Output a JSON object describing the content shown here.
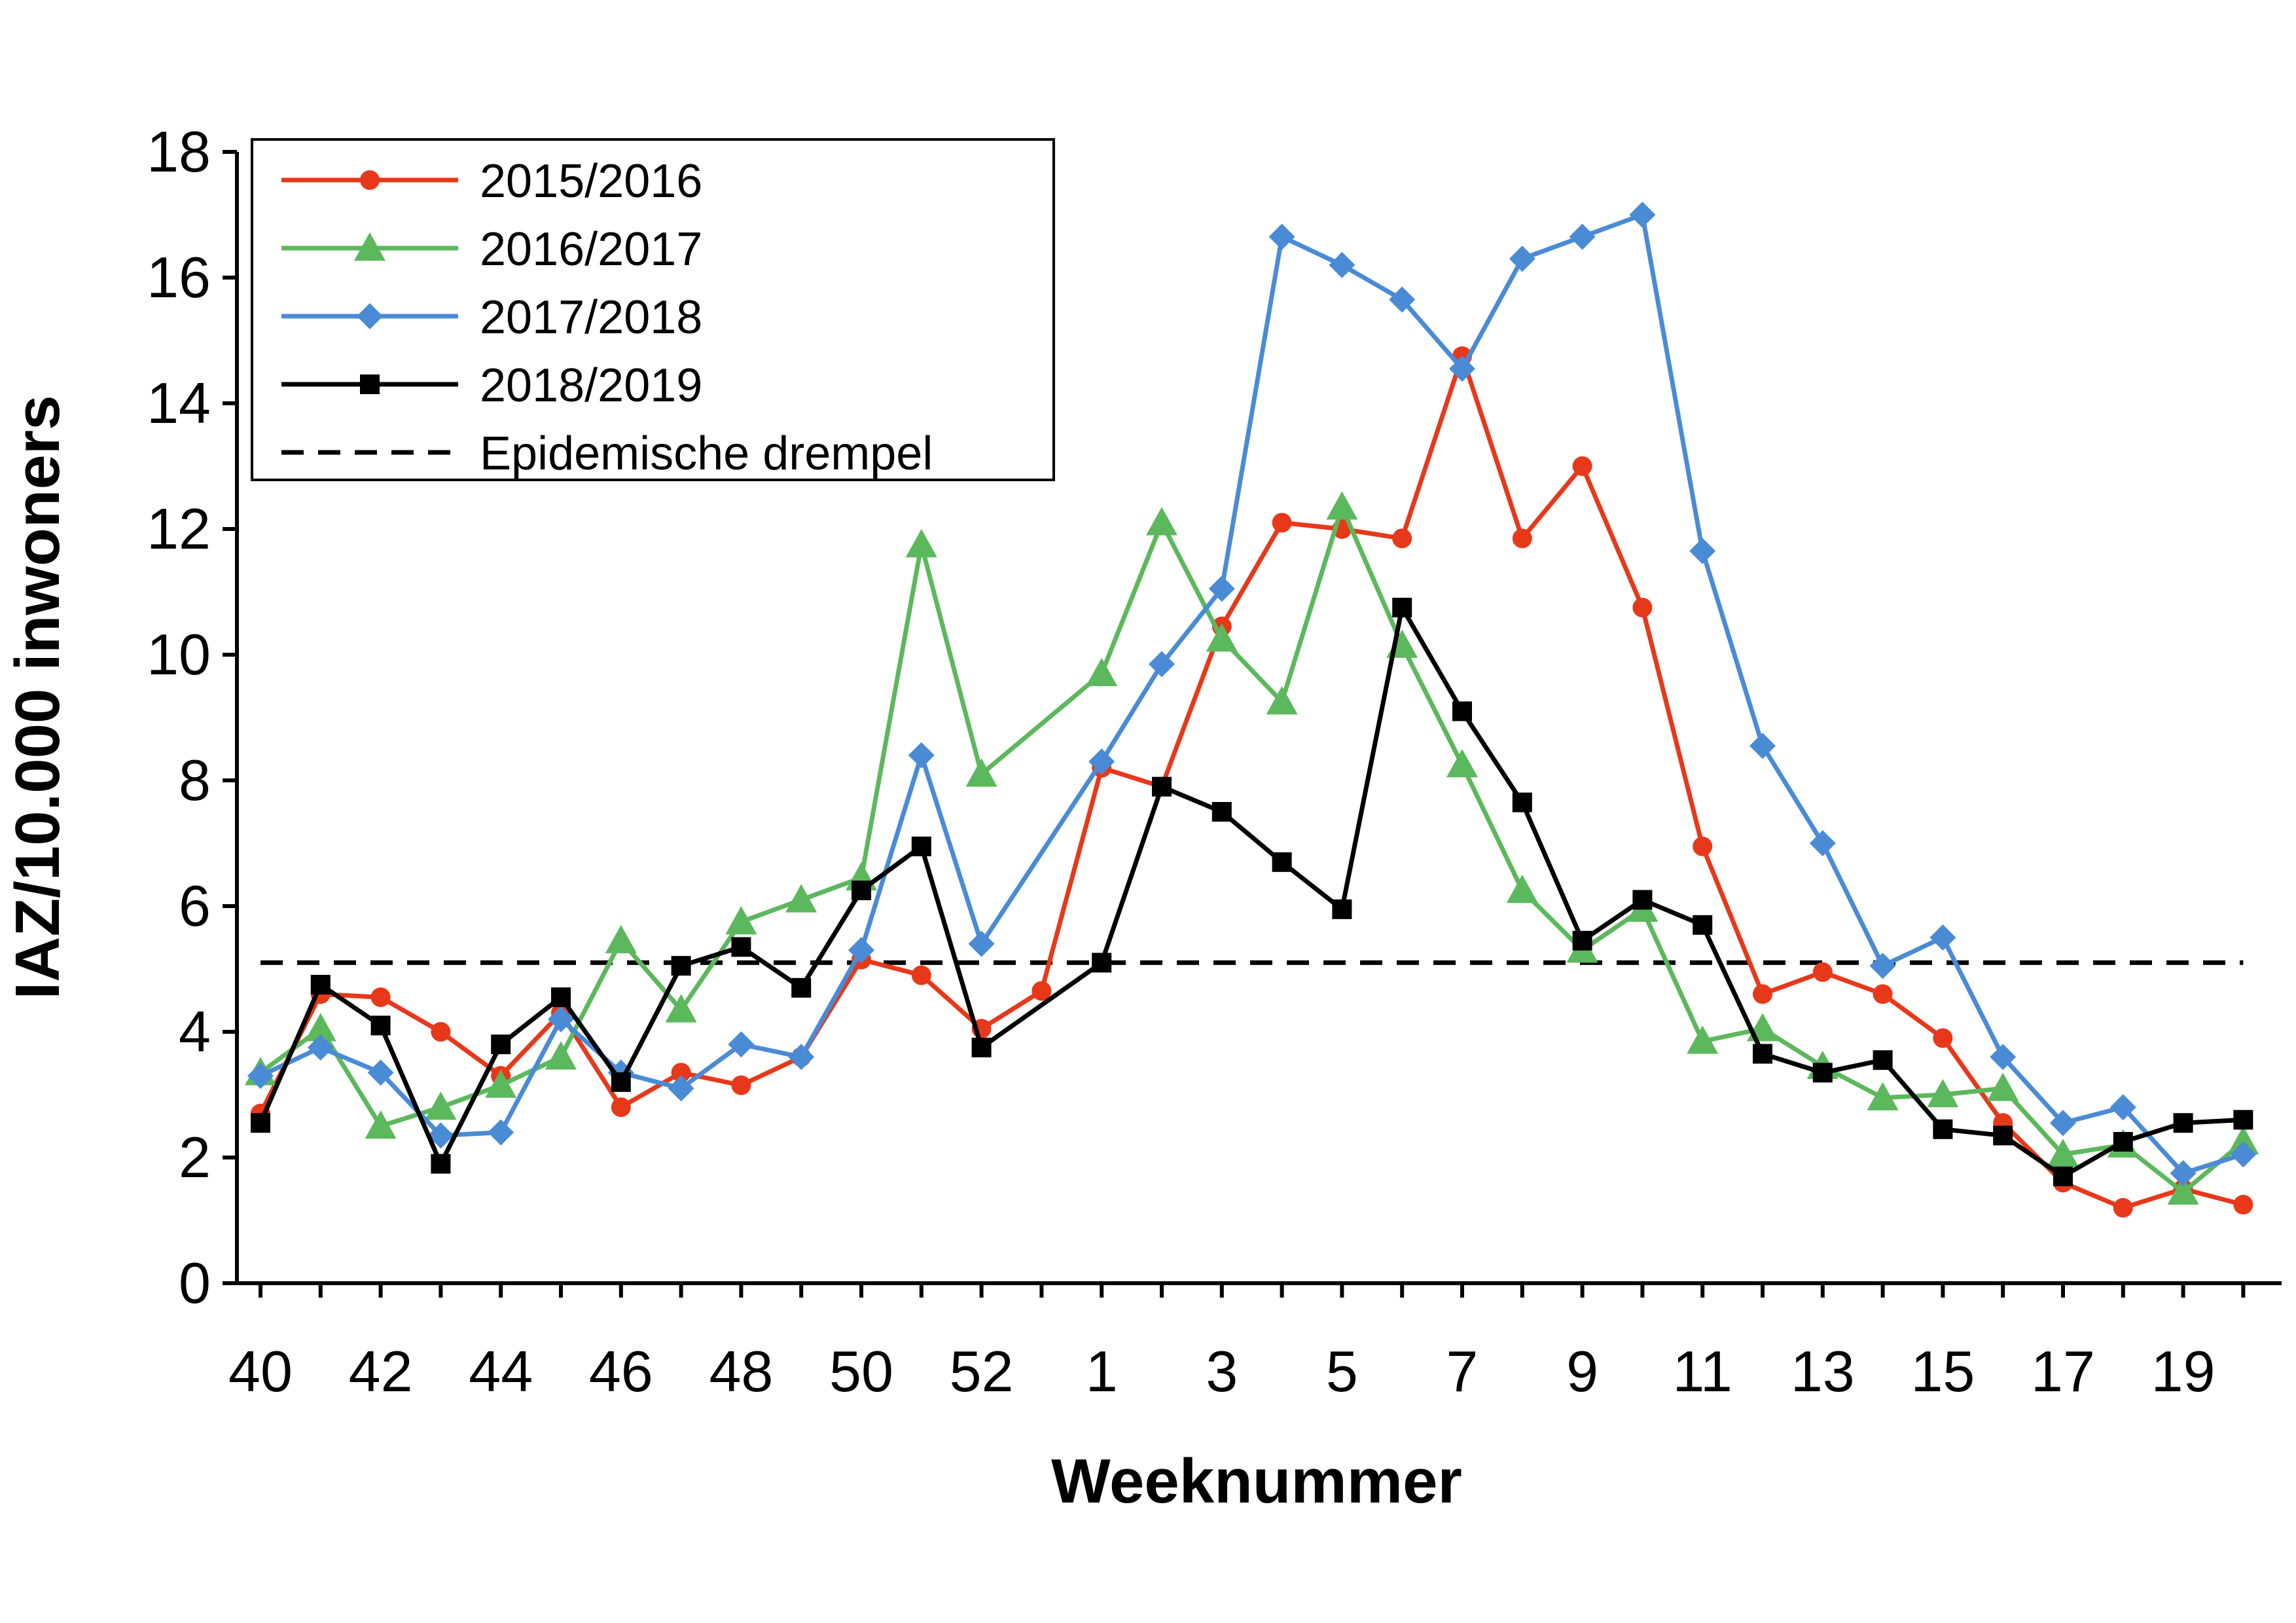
{
  "chart_data": {
    "type": "line",
    "title": "",
    "xlabel": "Weeknummer",
    "ylabel": "IAZ/10.000 inwoners",
    "ylim": [
      0,
      18
    ],
    "yticks": [
      "0",
      "2",
      "4",
      "6",
      "8",
      "10",
      "12",
      "14",
      "16",
      "18"
    ],
    "categories": [
      "40",
      "41",
      "42",
      "43",
      "44",
      "45",
      "46",
      "47",
      "48",
      "49",
      "50",
      "51",
      "52",
      "53",
      "1",
      "2",
      "3",
      "4",
      "5",
      "6",
      "7",
      "8",
      "9",
      "10",
      "11",
      "12",
      "13",
      "14",
      "15",
      "16",
      "17",
      "18",
      "19",
      "20"
    ],
    "tick_labels": [
      "40",
      "42",
      "44",
      "46",
      "48",
      "50",
      "52",
      "1",
      "3",
      "5",
      "7",
      "9",
      "11",
      "13",
      "15",
      "17",
      "19"
    ],
    "grid": false,
    "legend_position": "top-left",
    "series": [
      {
        "name": "2015/2016",
        "color": "#e8381a",
        "marker": "circle",
        "values": [
          2.7,
          4.6,
          4.55,
          4.0,
          3.3,
          4.3,
          2.8,
          3.35,
          3.15,
          3.6,
          5.15,
          4.9,
          4.05,
          4.65,
          8.2,
          7.9,
          10.45,
          12.1,
          12.0,
          11.85,
          14.75,
          11.85,
          13.0,
          10.75,
          6.95,
          4.6,
          4.95,
          4.6,
          3.9,
          2.55,
          1.6,
          1.2,
          1.5,
          1.25
        ]
      },
      {
        "name": "2016/2017",
        "color": "#5cb85c",
        "marker": "triangle",
        "values": [
          3.35,
          4.05,
          2.5,
          2.8,
          3.15,
          3.6,
          5.45,
          4.35,
          5.75,
          6.1,
          6.45,
          11.75,
          8.1,
          null,
          9.7,
          12.1,
          10.25,
          9.25,
          12.35,
          10.15,
          8.25,
          6.25,
          5.3,
          5.95,
          3.85,
          4.05,
          3.45,
          2.95,
          3.0,
          3.1,
          2.05,
          2.2,
          1.45,
          2.25
        ]
      },
      {
        "name": "2017/2018",
        "color": "#4a8bd6",
        "marker": "diamond",
        "values": [
          3.3,
          3.75,
          3.35,
          2.35,
          2.4,
          4.2,
          3.35,
          3.1,
          3.8,
          3.6,
          5.3,
          8.4,
          5.4,
          null,
          8.3,
          9.85,
          11.05,
          16.65,
          16.2,
          15.65,
          14.55,
          16.3,
          16.65,
          17.0,
          11.65,
          8.55,
          7.0,
          5.05,
          5.5,
          3.6,
          2.55,
          2.8,
          1.75,
          2.05
        ]
      },
      {
        "name": "2018/2019",
        "color": "#000000",
        "marker": "square",
        "values": [
          2.55,
          4.75,
          4.1,
          1.9,
          3.8,
          4.55,
          3.2,
          5.05,
          5.35,
          4.7,
          6.25,
          6.95,
          3.75,
          null,
          5.1,
          7.9,
          7.5,
          6.7,
          5.95,
          10.75,
          9.1,
          7.65,
          5.45,
          6.1,
          5.7,
          3.65,
          3.35,
          3.55,
          2.45,
          2.35,
          1.7,
          2.25,
          2.55,
          2.6
        ]
      }
    ],
    "threshold": {
      "name": "Epidemische drempel",
      "value": 5.1,
      "style": "dashed",
      "color": "#000000"
    }
  }
}
